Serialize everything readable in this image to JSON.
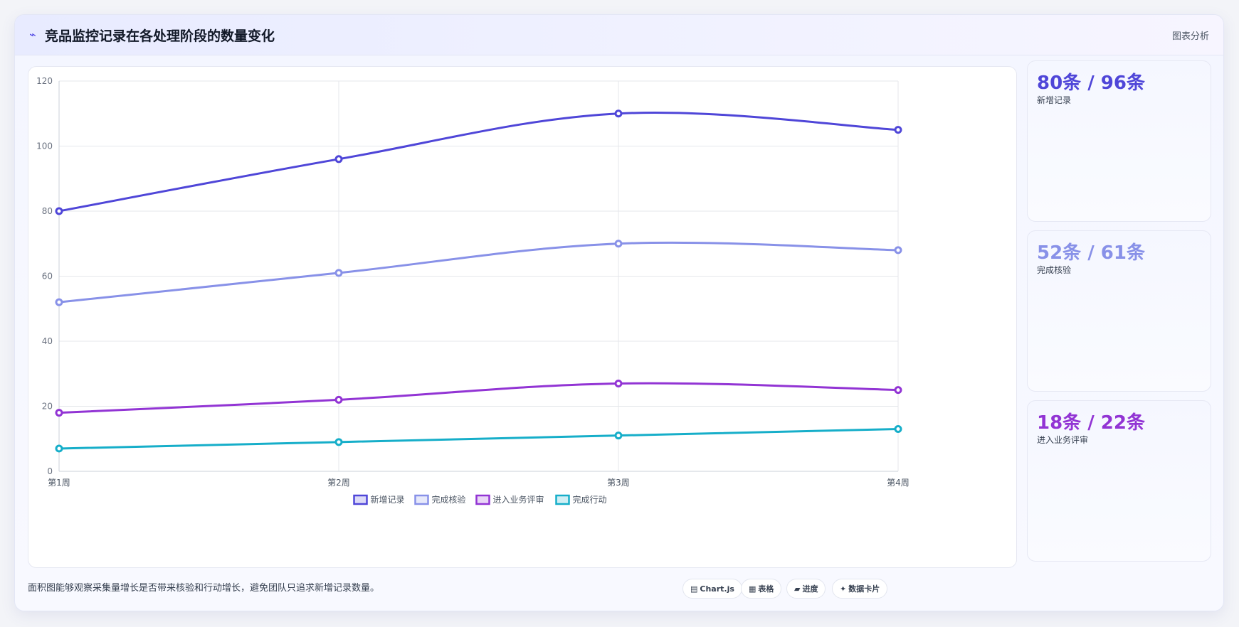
{
  "header": {
    "icon": "⌁",
    "title": "竞品监控记录在各处理阶段的数量变化",
    "action_label": "图表分析"
  },
  "chart_data": {
    "type": "line",
    "title": "",
    "xlabel": "",
    "ylabel": "",
    "categories": [
      "第1周",
      "第2周",
      "第3周",
      "第4周"
    ],
    "ylim": [
      0,
      120
    ],
    "yticks": [
      0,
      20,
      40,
      60,
      80,
      100,
      120
    ],
    "grid": true,
    "legend_position": "bottom",
    "series": [
      {
        "name": "新增记录",
        "values": [
          80,
          96,
          110,
          105
        ],
        "color": "#4f46d8"
      },
      {
        "name": "完成核验",
        "values": [
          52,
          61,
          70,
          68
        ],
        "color": "#8891e8"
      },
      {
        "name": "进入业务评审",
        "values": [
          18,
          22,
          27,
          25
        ],
        "color": "#9234d4"
      },
      {
        "name": "完成行动",
        "values": [
          7,
          9,
          11,
          13
        ],
        "color": "#16aec9"
      }
    ]
  },
  "stats": [
    {
      "value": "80条 / 96条",
      "label": "新增记录",
      "color": "#4f46d8"
    },
    {
      "value": "52条 / 61条",
      "label": "完成核验",
      "color": "#8891e8"
    },
    {
      "value": "18条 / 22条",
      "label": "进入业务评审",
      "color": "#9234d4"
    }
  ],
  "footer": {
    "note": "面积图能够观察采集量增长是否带来核验和行动增长，避免团队只追求新增记录数量。",
    "tags": [
      {
        "icon": "▤",
        "label": "Chart.js"
      },
      {
        "icon": "▦",
        "label": "表格"
      },
      {
        "icon": "▰",
        "label": "进度"
      },
      {
        "icon": "✦",
        "label": "数据卡片"
      }
    ]
  }
}
